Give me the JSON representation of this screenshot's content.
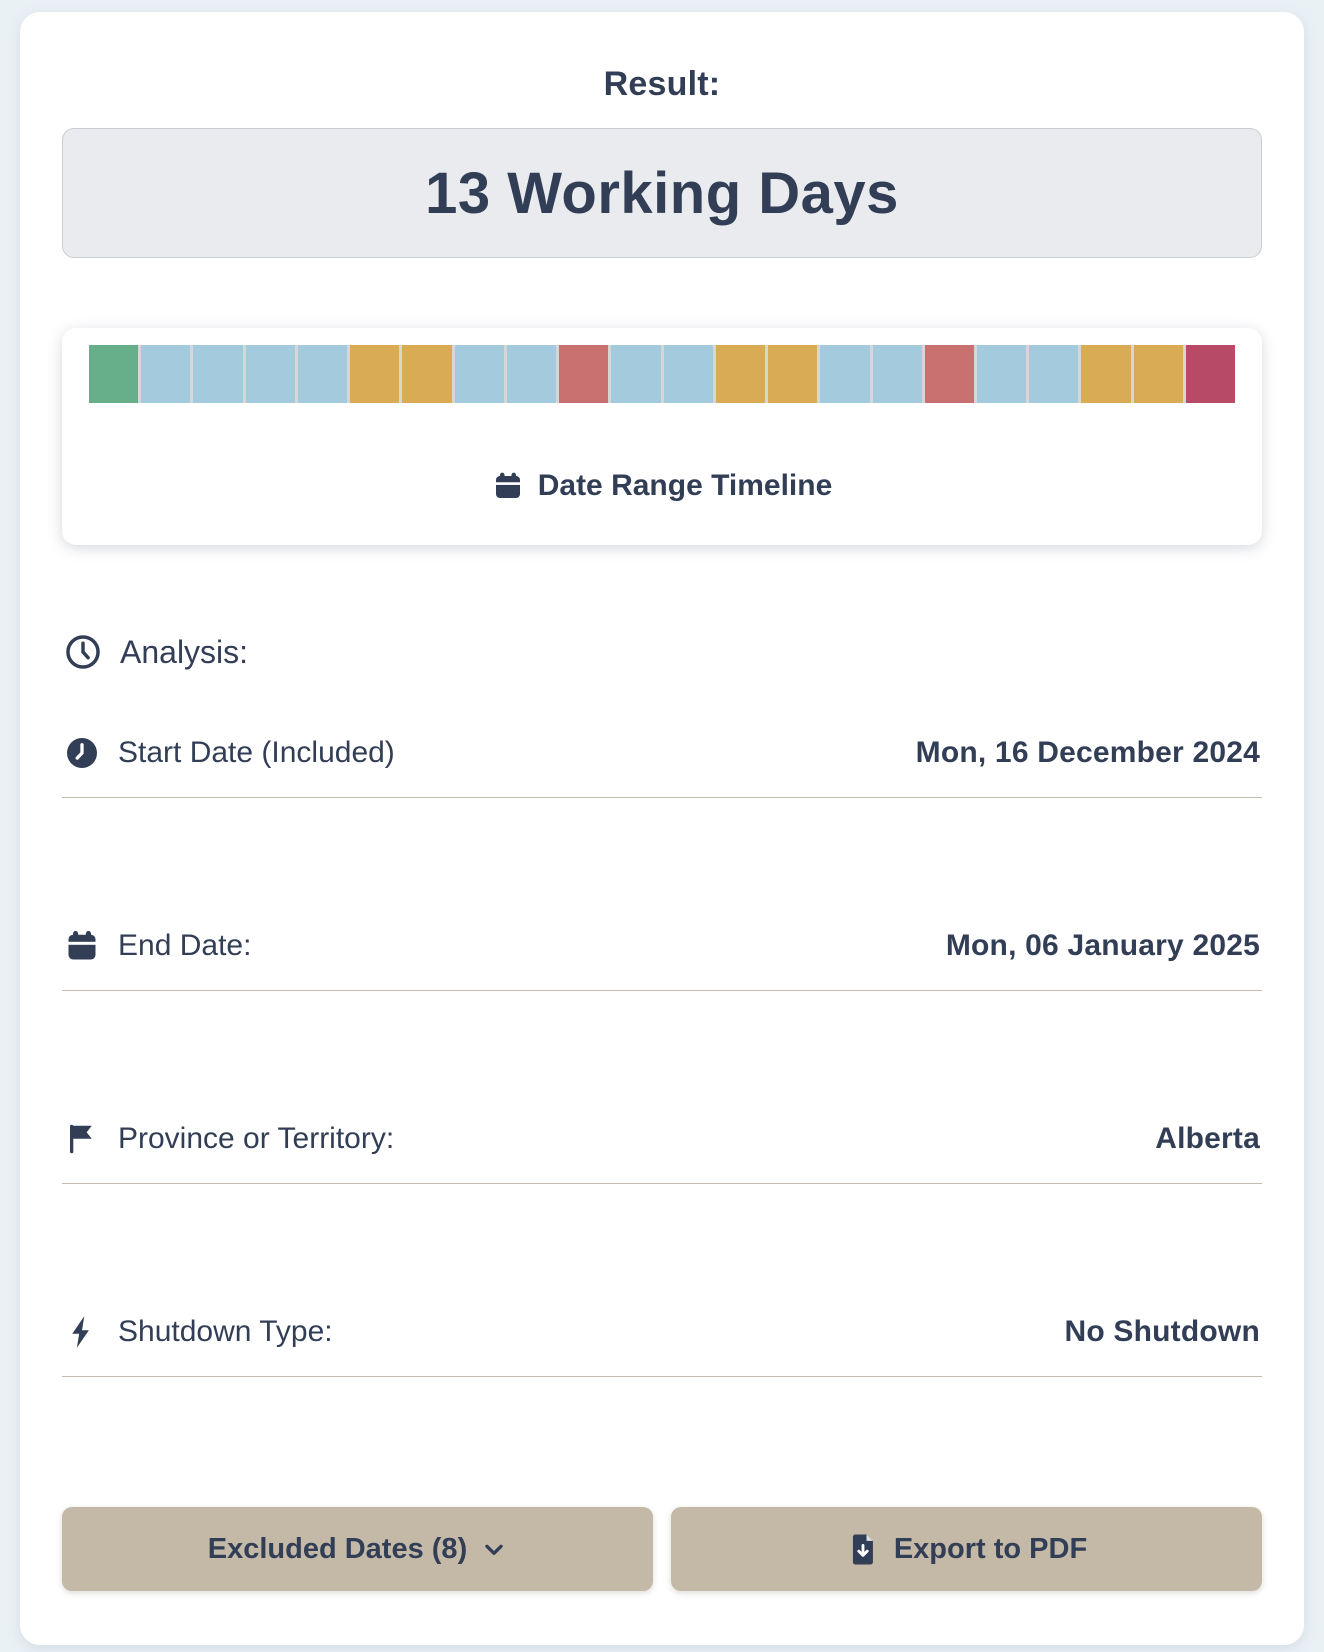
{
  "result": {
    "label": "Result:",
    "value": "13 Working Days"
  },
  "timeline": {
    "label": "Date Range Timeline",
    "day_colors": {
      "start": "#67ae8b",
      "working": "#a3cbdd",
      "weekend": "#d9ab55",
      "holiday": "#c97170",
      "end": "#b64a67"
    },
    "days": [
      "start",
      "working",
      "working",
      "working",
      "working",
      "weekend",
      "weekend",
      "working",
      "working",
      "holiday",
      "working",
      "working",
      "weekend",
      "weekend",
      "working",
      "working",
      "holiday",
      "working",
      "working",
      "weekend",
      "weekend",
      "end"
    ]
  },
  "analysis": {
    "heading": "Analysis:",
    "rows": [
      {
        "icon": "clock-filled-icon",
        "label": "Start Date (Included)",
        "value": "Mon, 16 December 2024"
      },
      {
        "icon": "calendar-icon",
        "label": "End Date:",
        "value": "Mon, 06 January 2025"
      },
      {
        "icon": "flag-icon",
        "label": "Province or Territory:",
        "value": "Alberta"
      },
      {
        "icon": "bolt-icon",
        "label": "Shutdown Type:",
        "value": "No Shutdown"
      }
    ]
  },
  "actions": {
    "excluded_dates_label": "Excluded Dates (8)",
    "export_pdf_label": "Export to PDF"
  },
  "colors": {
    "accent_navy": "#323e56",
    "button_tan": "#c4b9a7",
    "page_background": "#eaf1f5",
    "divider": "#a49984"
  }
}
